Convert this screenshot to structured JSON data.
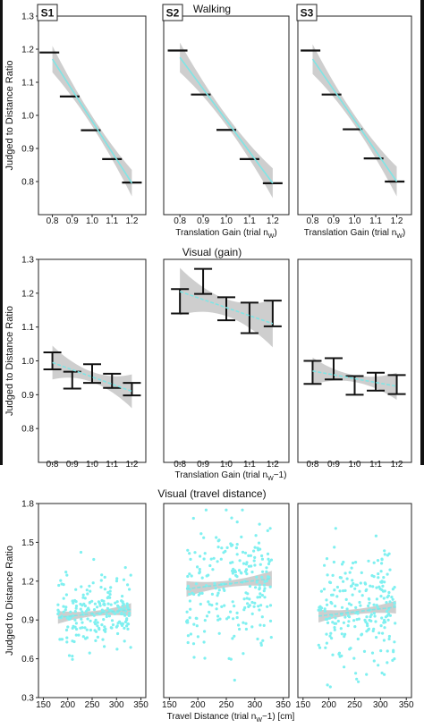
{
  "subject_labels": [
    "S1",
    "S2",
    "S3"
  ],
  "colors": {
    "fit": "#7fe5e5",
    "band": "#c6c6c6",
    "marker": "#111111",
    "points": "#7ff0f0",
    "frame": "#222222"
  },
  "chart_data": [
    {
      "type": "line",
      "title": "Walking",
      "ylabel": "Judged to Distance Ratio",
      "xlabel": "Translation Gain (trial n",
      "xlabel_sub": "W",
      "xlabel_end": ")",
      "xlim": [
        0.73,
        1.27
      ],
      "ylim": [
        0.7,
        1.3
      ],
      "x_ticks": [
        0.8,
        0.9,
        1.0,
        1.1,
        1.2
      ],
      "x_tick_labels": [
        "0.8",
        "0.9",
        "1.0",
        "1.1",
        "1.2"
      ],
      "y_ticks": [
        0.8,
        0.9,
        1.0,
        1.1,
        1.2,
        1.3
      ],
      "y_tick_labels": [
        "0.8",
        "0.9",
        "1.0",
        "1.1",
        "1.2",
        "1.3"
      ],
      "marks": "hbar",
      "panels": [
        {
          "subject": "S1",
          "x": [
            0.785,
            0.887,
            0.993,
            1.1,
            1.2
          ],
          "y": [
            1.19,
            1.057,
            0.955,
            0.868,
            0.797
          ],
          "fit": {
            "x": [
              0.8,
              1.2
            ],
            "y": [
              1.17,
              0.795
            ]
          },
          "band_half": [
            0.04,
            0.015,
            0.04
          ]
        },
        {
          "subject": "S2",
          "x": [
            0.79,
            0.89,
            1.0,
            1.1,
            1.2
          ],
          "y": [
            1.196,
            1.063,
            0.956,
            0.868,
            0.795
          ],
          "fit": {
            "x": [
              0.8,
              1.2
            ],
            "y": [
              1.175,
              0.795
            ]
          },
          "band_half": [
            0.045,
            0.015,
            0.045
          ]
        },
        {
          "subject": "S3",
          "x": [
            0.79,
            0.89,
            0.99,
            1.09,
            1.19
          ],
          "y": [
            1.196,
            1.063,
            0.958,
            0.87,
            0.8
          ],
          "fit": {
            "x": [
              0.8,
              1.2
            ],
            "y": [
              1.17,
              0.8
            ]
          },
          "band_half": [
            0.045,
            0.015,
            0.045
          ]
        }
      ]
    },
    {
      "type": "line",
      "title": "Visual (gain)",
      "ylabel": "Judged to Distance Ratio",
      "xlabel": "Translation Gain (trial n",
      "xlabel_sub": "W",
      "xlabel_end": "−1)",
      "xlim": [
        0.73,
        1.27
      ],
      "ylim": [
        0.7,
        1.3
      ],
      "x_ticks": [
        0.8,
        0.9,
        1.0,
        1.1,
        1.2
      ],
      "x_tick_labels": [
        "0.8",
        "0.9",
        "1.0",
        "1.1",
        "1.2"
      ],
      "y_ticks": [
        0.8,
        0.9,
        1.0,
        1.1,
        1.2,
        1.3
      ],
      "y_tick_labels": [
        "0.8",
        "0.9",
        "1.0",
        "1.1",
        "1.2",
        "1.3"
      ],
      "marks": "errorbar",
      "panels": [
        {
          "subject": "S1",
          "x": [
            0.8,
            0.9,
            1.0,
            1.1,
            1.2
          ],
          "low": [
            0.975,
            0.918,
            0.935,
            0.92,
            0.898
          ],
          "high": [
            1.025,
            0.968,
            0.99,
            0.962,
            0.935
          ],
          "fit": {
            "x": [
              0.8,
              1.2
            ],
            "y": [
              0.995,
              0.91
            ]
          },
          "band_half": [
            0.05,
            0.015,
            0.05
          ]
        },
        {
          "subject": "S2",
          "x": [
            0.8,
            0.9,
            1.0,
            1.1,
            1.2
          ],
          "low": [
            1.14,
            1.198,
            1.12,
            1.082,
            1.102
          ],
          "high": [
            1.212,
            1.272,
            1.188,
            1.172,
            1.178
          ],
          "fit": {
            "x": [
              0.8,
              1.2
            ],
            "y": [
              1.205,
              1.11
            ]
          },
          "band_half": [
            0.07,
            0.025,
            0.07
          ]
        },
        {
          "subject": "S3",
          "x": [
            0.8,
            0.9,
            1.0,
            1.1,
            1.2
          ],
          "low": [
            0.932,
            0.945,
            0.9,
            0.912,
            0.902
          ],
          "high": [
            1.0,
            1.008,
            0.955,
            0.965,
            0.958
          ],
          "fit": {
            "x": [
              0.8,
              1.2
            ],
            "y": [
              0.97,
              0.925
            ]
          },
          "band_half": [
            0.04,
            0.01,
            0.04
          ]
        }
      ]
    },
    {
      "type": "scatter",
      "title": "Visual (travel distance)",
      "ylabel": "Judged to Distance Ratio",
      "xlabel": "Travel Distance (trial n",
      "xlabel_sub": "W",
      "xlabel_end": "−1) [cm]",
      "xlim": [
        140,
        360
      ],
      "ylim": [
        0.3,
        1.8
      ],
      "x_ticks": [
        150,
        200,
        250,
        300,
        350
      ],
      "x_tick_labels": [
        "150",
        "200",
        "250",
        "300",
        "350"
      ],
      "y_ticks": [
        0.3,
        0.6,
        0.9,
        1.2,
        1.5,
        1.8
      ],
      "y_tick_labels": [
        "0.3",
        "0.6",
        "0.9",
        "1.2",
        "1.5",
        "1.8"
      ],
      "marks": "points",
      "panels": [
        {
          "subject": "S1",
          "n_points": 210,
          "x_range": [
            180,
            330
          ],
          "fit": {
            "x": [
              180,
              330
            ],
            "y": [
              0.92,
              0.98
            ]
          },
          "band_half": [
            0.05,
            0.02,
            0.05
          ],
          "y_center": 0.96,
          "y_spread": 0.14
        },
        {
          "subject": "S2",
          "n_points": 230,
          "x_range": [
            180,
            330
          ],
          "fit": {
            "x": [
              180,
              330
            ],
            "y": [
              1.14,
              1.22
            ]
          },
          "band_half": [
            0.06,
            0.025,
            0.06
          ],
          "y_center": 1.18,
          "y_spread": 0.24
        },
        {
          "subject": "S3",
          "n_points": 230,
          "x_range": [
            180,
            330
          ],
          "fit": {
            "x": [
              180,
              330
            ],
            "y": [
              0.93,
              1.0
            ]
          },
          "band_half": [
            0.05,
            0.02,
            0.05
          ],
          "y_center": 0.97,
          "y_spread": 0.24
        }
      ]
    }
  ]
}
